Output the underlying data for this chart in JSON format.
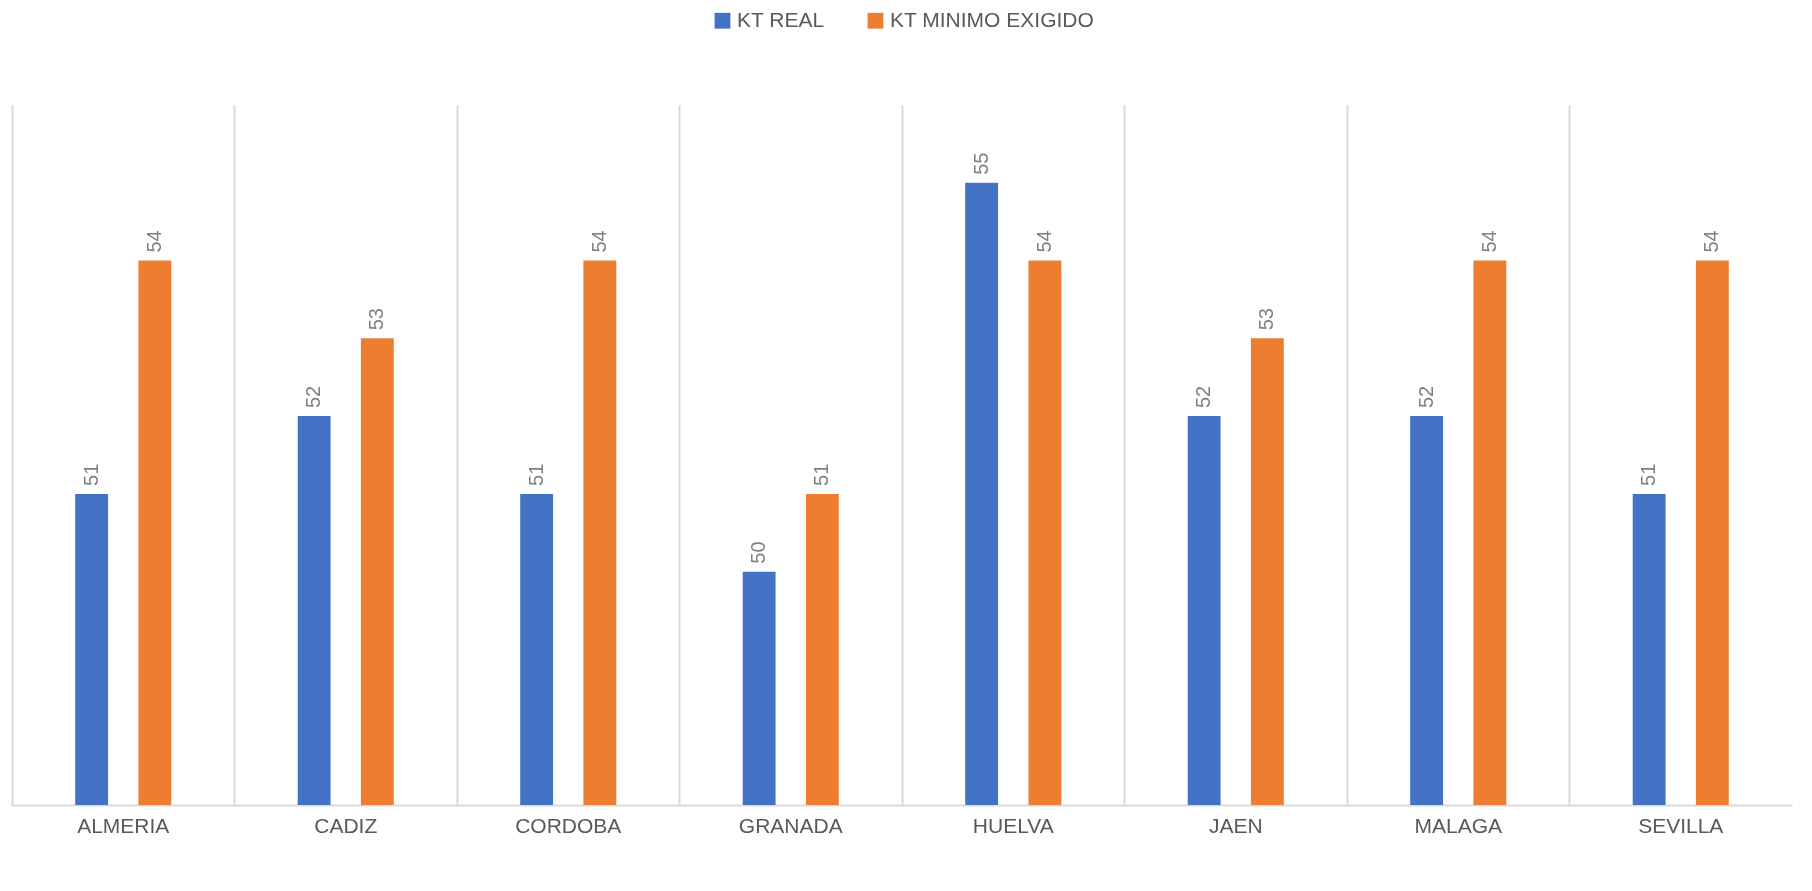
{
  "chart_data": {
    "type": "bar",
    "categories": [
      "ALMERIA",
      "CADIZ",
      "CORDOBA",
      "GRANADA",
      "HUELVA",
      "JAEN",
      "MALAGA",
      "SEVILLA"
    ],
    "series": [
      {
        "name": "KT REAL",
        "color": "#4472c4",
        "values": [
          51,
          52,
          51,
          50,
          55,
          52,
          52,
          51
        ]
      },
      {
        "name": "KT MINIMO EXIGIDO",
        "color": "#ed7d31",
        "values": [
          54,
          53,
          54,
          51,
          54,
          53,
          54,
          54
        ]
      }
    ],
    "ylim": [
      47,
      56
    ],
    "data_labels": true,
    "grid": "x",
    "legend": "top",
    "tick_labels": "x"
  }
}
